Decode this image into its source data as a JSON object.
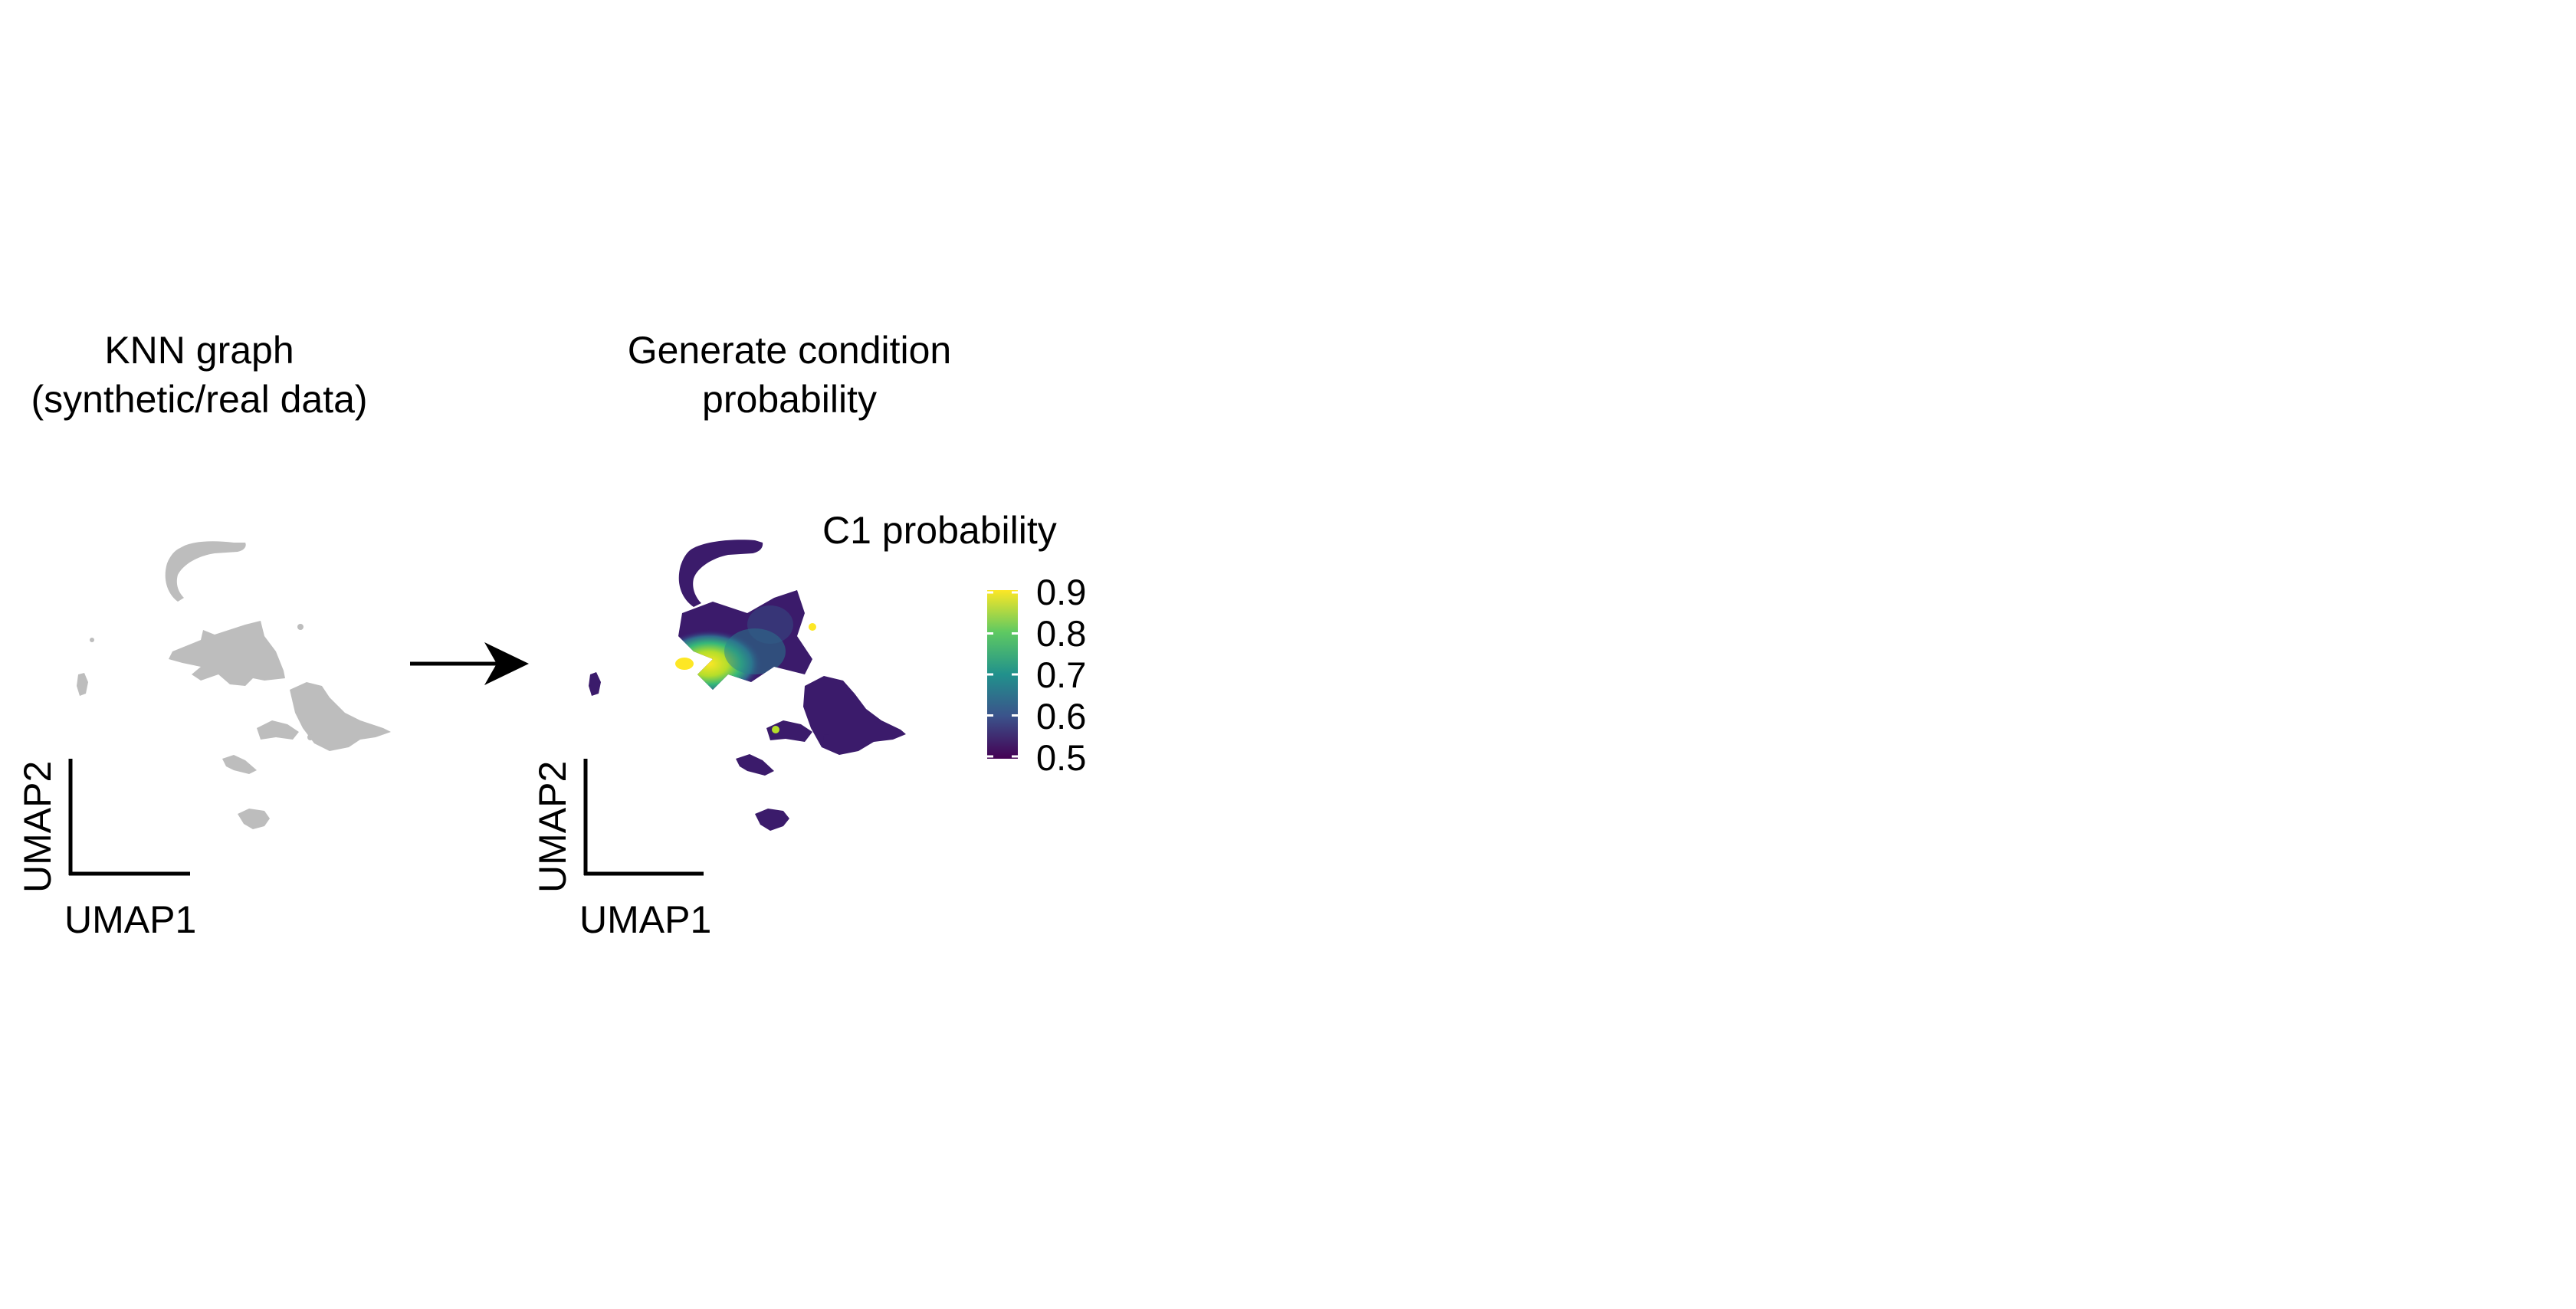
{
  "panel1": {
    "title_line1": "KNN graph",
    "title_line2": "(synthetic/real data)",
    "xlabel": "UMAP1",
    "ylabel": "UMAP2",
    "point_color": "#bdbdbd"
  },
  "panel2": {
    "title_line1": "Generate condition",
    "title_line2": "probability",
    "xlabel": "UMAP1",
    "ylabel": "UMAP2"
  },
  "legend": {
    "title": "C1 probability",
    "ticks": [
      "0.9",
      "0.8",
      "0.7",
      "0.6",
      "0.5"
    ],
    "range": [
      0.5,
      0.9
    ],
    "colormap": [
      "#440154",
      "#3b528b",
      "#21918c",
      "#5ec962",
      "#fde725"
    ]
  },
  "arrow": {
    "color": "#000000"
  }
}
